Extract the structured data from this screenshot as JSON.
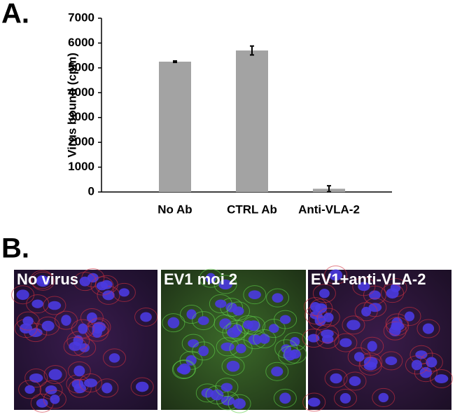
{
  "panels": {
    "a": "A.",
    "b": "B."
  },
  "chart_data": {
    "type": "bar",
    "y_label": "Virus bound (cpm)",
    "categories": [
      "No Ab",
      "CTRL Ab",
      "Anti-VLA-2"
    ],
    "values": [
      5250,
      5700,
      130
    ],
    "errors": [
      30,
      180,
      120
    ],
    "color": "#a3a3a3",
    "ylim": [
      0,
      7000
    ],
    "yticks": [
      0,
      1000,
      2000,
      3000,
      4000,
      5000,
      6000,
      7000
    ],
    "grid": false
  },
  "images": [
    {
      "label": "No virus"
    },
    {
      "label": "EV1 moi 2"
    },
    {
      "label": "EV1+anti-VLA-2"
    }
  ]
}
